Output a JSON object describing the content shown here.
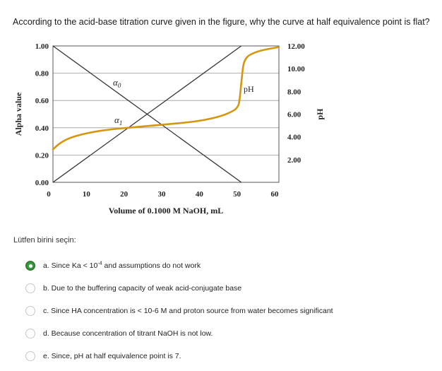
{
  "question": {
    "text": "According to the acid-base titration curve given in the figure, why the curve at half equivalence point is flat?"
  },
  "prompt": {
    "text": "Lütfen birini seçin:"
  },
  "options": [
    {
      "id": "a",
      "label_pre": "a. Since Ka < 10",
      "label_sup": "-4",
      "label_post": " and assumptions do not work",
      "selected": true
    },
    {
      "id": "b",
      "label": "b. Due to the buffering capacity of weak acid-conjugate base",
      "selected": false
    },
    {
      "id": "c",
      "label": "c. Since HA concentration is < 10-6 M and proton source from water becomes significant",
      "selected": false
    },
    {
      "id": "d",
      "label": "d. Because concentration of titrant NaOH is not low.",
      "selected": false
    },
    {
      "id": "e",
      "label": "e. Since, pH at half equivalence point is 7.",
      "selected": false
    }
  ],
  "chart_data": {
    "type": "line",
    "title": "",
    "xlabel": "Volume of 0.1000 M NaOH, mL",
    "ylabel_left": "Alpha value",
    "ylabel_right": "pH",
    "xlim": [
      0,
      60
    ],
    "ylim_left": [
      0,
      1
    ],
    "ylim_right": [
      0,
      12
    ],
    "x_ticks": [
      "0",
      "10",
      "20",
      "30",
      "40",
      "50",
      "60"
    ],
    "y_ticks_left": [
      "0.00",
      "0.20",
      "0.40",
      "0.60",
      "0.80",
      "1.00"
    ],
    "y_ticks_right": [
      "2.00",
      "4.00",
      "6.00",
      "8.00",
      "10.00",
      "12.00"
    ],
    "grid": true,
    "annotations": {
      "alpha0": "α",
      "alpha0_sub": "0",
      "alpha1": "α",
      "alpha1_sub": "1",
      "ph": "pH"
    },
    "series": [
      {
        "name": "α0",
        "axis": "left",
        "color": "#333333",
        "x": [
          0,
          50
        ],
        "y": [
          1.0,
          0.0
        ]
      },
      {
        "name": "α1",
        "axis": "left",
        "color": "#333333",
        "x": [
          0,
          50
        ],
        "y": [
          0.0,
          1.0
        ]
      },
      {
        "name": "pH",
        "axis": "right",
        "color": "#d4970f",
        "x": [
          0,
          2,
          5,
          10,
          15,
          20,
          25,
          30,
          35,
          40,
          45,
          48,
          49,
          49.5,
          50,
          50.5,
          51,
          52,
          55,
          60
        ],
        "y": [
          2.9,
          3.5,
          4.0,
          4.4,
          4.65,
          4.8,
          4.95,
          5.1,
          5.25,
          5.45,
          5.85,
          6.3,
          6.6,
          7.0,
          8.7,
          10.3,
          10.8,
          11.2,
          11.6,
          11.9
        ]
      }
    ]
  }
}
